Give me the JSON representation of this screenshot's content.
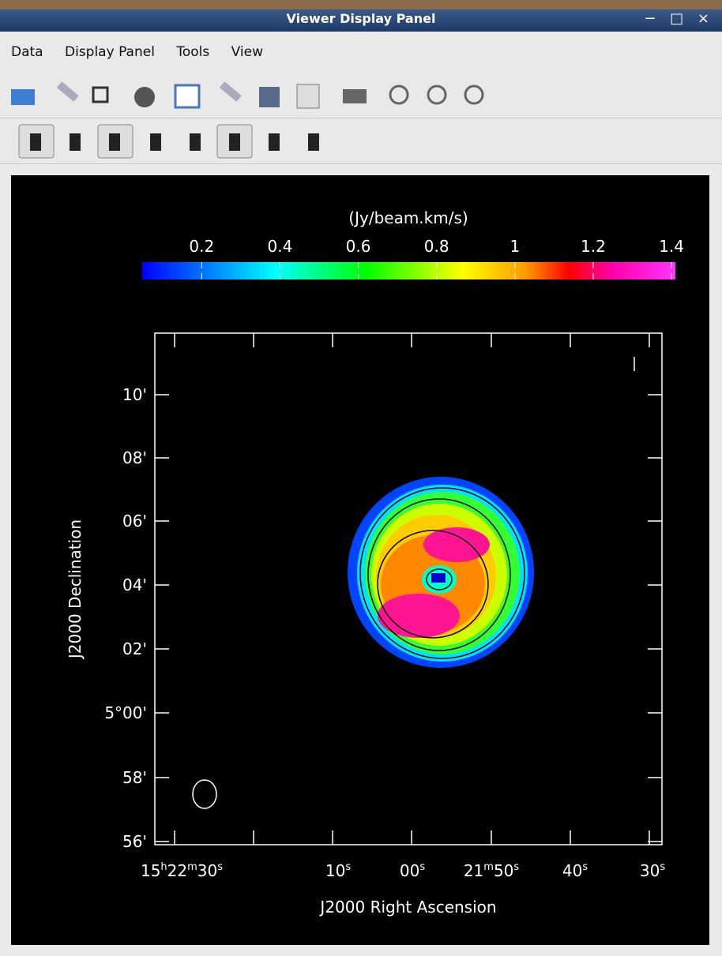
{
  "window": {
    "title": "Viewer Display Panel"
  },
  "menu": [
    "Data",
    "Display Panel",
    "Tools",
    "View"
  ],
  "plot": {
    "colorbar": {
      "label": "(Jy/beam.km/s)",
      "lim": [
        0.048,
        1.41
      ],
      "ticks": [
        0.2,
        0.4,
        0.6,
        0.8,
        1,
        1.2,
        1.4
      ]
    },
    "x_axis_label": "J2000 Right Ascension",
    "y_axis_label": "J2000 Declination",
    "x_tick_labels": [
      [
        "15",
        "h",
        "22",
        "m",
        "30",
        "s"
      ],
      [
        "10",
        "s"
      ],
      [
        "00",
        "s"
      ],
      [
        "21",
        "m",
        "50",
        "s"
      ],
      [
        "40",
        "s"
      ],
      [
        "30",
        "s"
      ]
    ],
    "y_tick_labels": [
      "10'",
      "08'",
      "06'",
      "04'",
      "02'",
      "5°00'",
      "58'",
      "56'"
    ]
  }
}
